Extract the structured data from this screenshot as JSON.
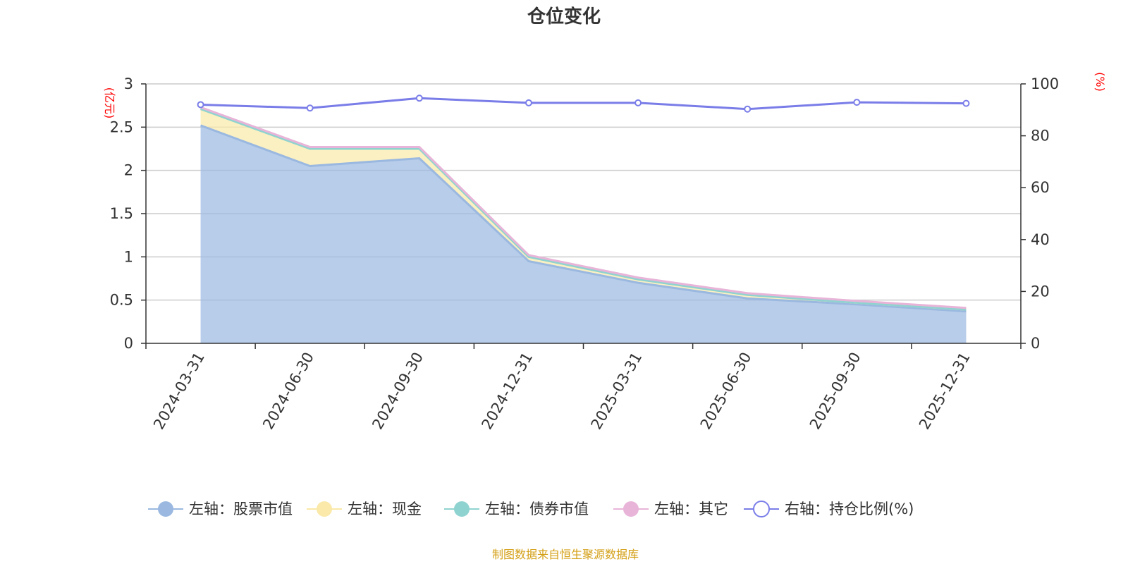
{
  "chart_data": {
    "type": "area",
    "title": "仓位变化",
    "source_note": "制图数据来自恒生聚源数据库",
    "categories": [
      "2024-03-31",
      "2024-06-30",
      "2024-09-30",
      "2024-12-31",
      "2025-03-31",
      "2025-06-30",
      "2025-09-30",
      "2025-12-31"
    ],
    "left_axis": {
      "unit": "(亿元)",
      "range": [
        0,
        3
      ],
      "ticks": [
        "0",
        "0.5",
        "1",
        "1.5",
        "2",
        "2.5",
        "3"
      ]
    },
    "right_axis": {
      "unit": "(%)",
      "range": [
        0,
        100
      ],
      "ticks": [
        "0",
        "20",
        "40",
        "60",
        "80",
        "100"
      ]
    },
    "grid": true,
    "legend_position": "bottom",
    "series": [
      {
        "name": "左轴：股票市值",
        "axis": "left",
        "stacked": true,
        "color": "#9ab8e0",
        "values": [
          2.52,
          2.05,
          2.14,
          0.95,
          0.7,
          0.52,
          0.45,
          0.37
        ]
      },
      {
        "name": "左轴：现金",
        "axis": "left",
        "stacked": true,
        "color": "#fae9a8",
        "values": [
          0.19,
          0.2,
          0.11,
          0.05,
          0.04,
          0.04,
          0.02,
          0.02
        ]
      },
      {
        "name": "左轴：债券市值",
        "axis": "left",
        "stacked": true,
        "color": "#8fd3d0",
        "values": [
          0,
          0,
          0,
          0,
          0,
          0,
          0,
          0
        ]
      },
      {
        "name": "左轴：其它",
        "axis": "left",
        "stacked": true,
        "color": "#e8b4d8",
        "values": [
          0.02,
          0.02,
          0.02,
          0.02,
          0.02,
          0.02,
          0.02,
          0.02
        ]
      },
      {
        "name": "右轴：持仓比例(%)",
        "axis": "right",
        "type": "line",
        "color": "#7a7de8",
        "values": [
          92.0,
          90.7,
          94.5,
          92.7,
          92.7,
          90.3,
          92.9,
          92.5
        ]
      }
    ],
    "colors": {
      "axis_unit": "#ff0000",
      "source_note": "#d4a017",
      "grid": "#cccccc",
      "axis": "#333333"
    }
  }
}
